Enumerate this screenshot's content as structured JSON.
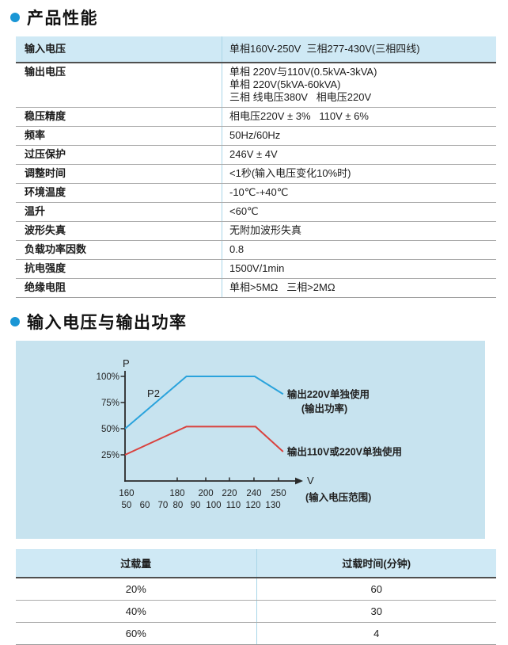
{
  "colors": {
    "accent": "#1a96d5",
    "header_bg": "#cfe9f5",
    "chart_bg": "#c7e3ef",
    "blue_line": "#2aa3dc",
    "red_line": "#d9423e",
    "dark_border": "#4f4f4f",
    "divider": "#a9d6e8"
  },
  "section1": {
    "title": "产品性能"
  },
  "spec_table": {
    "header": {
      "label": "输入电压",
      "value": "单相160V-250V  三相277-430V(三相四线)"
    },
    "rows": [
      {
        "label": "输出电压",
        "value": "单相 220V与110V(0.5kVA-3kVA)\n单相 220V(5kVA-60kVA)\n三相 线电压380V   相电压220V"
      },
      {
        "label": "稳压精度",
        "value": "相电压220V ± 3%   110V ± 6%"
      },
      {
        "label": "频率",
        "value": "50Hz/60Hz"
      },
      {
        "label": "过压保护",
        "value": "246V ± 4V"
      },
      {
        "label": "调整时间",
        "value": "<1秒(输入电压变化10%时)"
      },
      {
        "label": "环境温度",
        "value": "-10℃-+40℃"
      },
      {
        "label": "温升",
        "value": "<60℃"
      },
      {
        "label": "波形失真",
        "value": "无附加波形失真"
      },
      {
        "label": "负载功率因数",
        "value": "0.8"
      },
      {
        "label": "抗电强度",
        "value": "1500V/1min"
      },
      {
        "label": "绝缘电阻",
        "value": "单相>5MΩ   三相>2MΩ"
      }
    ]
  },
  "section2": {
    "title": "输入电压与输出功率"
  },
  "chart_data": {
    "type": "line",
    "title": "",
    "ylabel": "P",
    "xlabel": "V",
    "xlabel_note": "(输入电压范围)",
    "ylim": [
      0,
      100
    ],
    "grid": false,
    "y_ticks": [
      {
        "label": "100%",
        "p": 100
      },
      {
        "label": "75%",
        "p": 75
      },
      {
        "label": "50%",
        "p": 50
      },
      {
        "label": "25%",
        "p": 25
      }
    ],
    "x_ticks_220v_scale": [
      {
        "label": "160",
        "f": 0.01
      },
      {
        "label": "180",
        "f": 0.34
      },
      {
        "label": "200",
        "f": 0.526
      },
      {
        "label": "220",
        "f": 0.68
      },
      {
        "label": "240",
        "f": 0.84
      },
      {
        "label": "250",
        "f": 1.0
      }
    ],
    "x_ticks_110v_scale": [
      {
        "label": "50",
        "f": 0.01
      },
      {
        "label": "60",
        "f": 0.129
      },
      {
        "label": "70",
        "f": 0.247
      },
      {
        "label": "80",
        "f": 0.345
      },
      {
        "label": "90",
        "f": 0.459
      },
      {
        "label": "100",
        "f": 0.577
      },
      {
        "label": "110",
        "f": 0.706
      },
      {
        "label": "120",
        "f": 0.835
      },
      {
        "label": "130",
        "f": 0.964
      }
    ],
    "series": [
      {
        "name": "输出220V单独使用(输出功率)",
        "curve_label": "P2",
        "color": "#2aa3dc",
        "annotation": [
          "输出220V单独使用",
          "(输出功率)"
        ],
        "points": [
          {
            "f": 0,
            "p": 50
          },
          {
            "f": 0.4,
            "p": 100
          },
          {
            "f": 0.845,
            "p": 100
          },
          {
            "f": 1.03,
            "p": 83
          }
        ]
      },
      {
        "name": "输出110V或220V单独使用",
        "curve_label": "",
        "color": "#d9423e",
        "annotation": [
          "输出110V或220V单独使用"
        ],
        "points": [
          {
            "f": 0,
            "p": 25
          },
          {
            "f": 0.4,
            "p": 52
          },
          {
            "f": 0.85,
            "p": 52
          },
          {
            "f": 1.03,
            "p": 28
          }
        ]
      }
    ]
  },
  "overload_table": {
    "headers": [
      "过载量",
      "过载时间(分钟)"
    ],
    "rows": [
      [
        "20%",
        "60"
      ],
      [
        "40%",
        "30"
      ],
      [
        "60%",
        "4"
      ]
    ]
  }
}
